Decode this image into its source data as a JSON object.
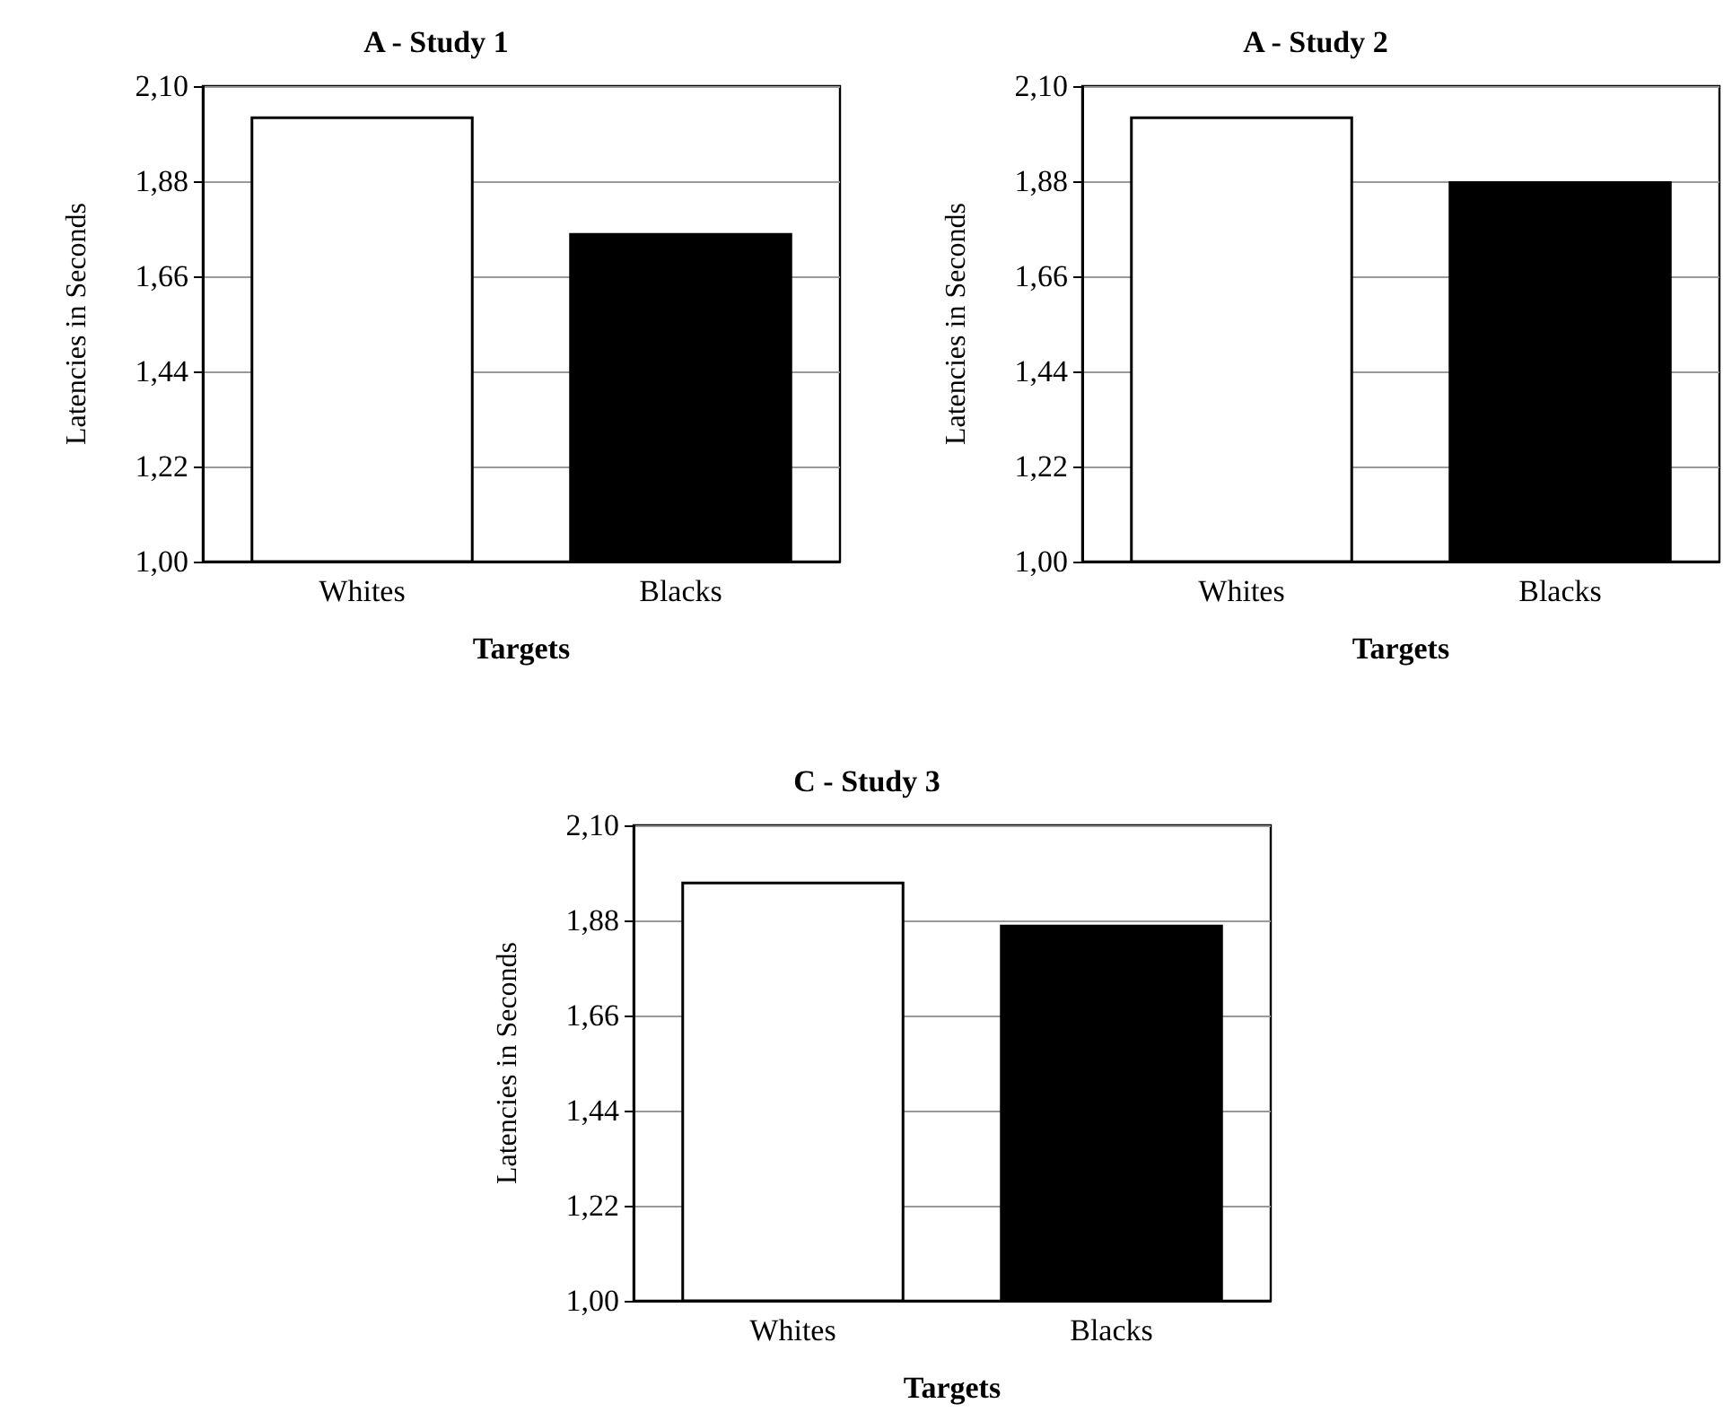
{
  "chart_data": [
    {
      "type": "bar",
      "title": "A - Study 1",
      "xlabel": "Targets",
      "ylabel": "Latencies in Seconds",
      "categories": [
        "Whites",
        "Blacks"
      ],
      "values": [
        2.03,
        1.76
      ],
      "colors": [
        "#ffffff",
        "#000000"
      ],
      "ylim": [
        1.0,
        2.1
      ],
      "yticks": [
        {
          "value": 1.0,
          "label": "1,00"
        },
        {
          "value": 1.22,
          "label": "1,22"
        },
        {
          "value": 1.44,
          "label": "1,44"
        },
        {
          "value": 1.66,
          "label": "1,66"
        },
        {
          "value": 1.88,
          "label": "1,88"
        },
        {
          "value": 2.1,
          "label": "2,10"
        }
      ],
      "grid": "y"
    },
    {
      "type": "bar",
      "title": "A - Study 2",
      "xlabel": "Targets",
      "ylabel": "Latencies in Seconds",
      "categories": [
        "Whites",
        "Blacks"
      ],
      "values": [
        2.03,
        1.88
      ],
      "colors": [
        "#ffffff",
        "#000000"
      ],
      "ylim": [
        1.0,
        2.1
      ],
      "yticks": [
        {
          "value": 1.0,
          "label": "1,00"
        },
        {
          "value": 1.22,
          "label": "1,22"
        },
        {
          "value": 1.44,
          "label": "1,44"
        },
        {
          "value": 1.66,
          "label": "1,66"
        },
        {
          "value": 1.88,
          "label": "1,88"
        },
        {
          "value": 2.1,
          "label": "2,10"
        }
      ],
      "grid": "y"
    },
    {
      "type": "bar",
      "title": "C - Study 3",
      "xlabel": "Targets",
      "ylabel": "Latencies in Seconds",
      "categories": [
        "Whites",
        "Blacks"
      ],
      "values": [
        1.97,
        1.87
      ],
      "colors": [
        "#ffffff",
        "#000000"
      ],
      "ylim": [
        1.0,
        2.1
      ],
      "yticks": [
        {
          "value": 1.0,
          "label": "1,00"
        },
        {
          "value": 1.22,
          "label": "1,22"
        },
        {
          "value": 1.44,
          "label": "1,44"
        },
        {
          "value": 1.66,
          "label": "1,66"
        },
        {
          "value": 1.88,
          "label": "1,88"
        },
        {
          "value": 2.1,
          "label": "2,10"
        }
      ],
      "grid": "y"
    }
  ]
}
